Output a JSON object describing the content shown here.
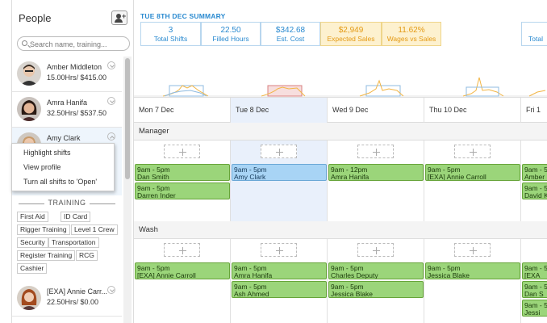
{
  "sidebar": {
    "title": "People",
    "search_placeholder": "Search name, training...",
    "people": [
      {
        "name": "Amber Middleton",
        "rate": "15.00Hrs/ $415.00"
      },
      {
        "name": "Amra Hanifa",
        "rate": "32.50Hrs/ $537.50"
      },
      {
        "name": "Amy Clark",
        "rate": ""
      },
      {
        "name": "[EXA] Annie Carr...",
        "rate": "22.50Hrs/ $0.00"
      }
    ],
    "context_menu": [
      "Highlight shifts",
      "View profile",
      "Turn all shifts to 'Open'"
    ],
    "training": {
      "heading": "TRAINING",
      "tags": [
        "First Aid",
        "ID Card",
        "Rigger Training",
        "Level 1 Crew",
        "Security",
        "Transportation",
        "Register Training",
        "RCG",
        "Cashier"
      ]
    }
  },
  "summary": {
    "title": "TUE 8TH DEC SUMMARY",
    "stats": [
      {
        "value": "3",
        "label": "Total Shifts"
      },
      {
        "value": "22.50",
        "label": "Filled Hours"
      },
      {
        "value": "$342.68",
        "label": "Est. Cost"
      },
      {
        "value": "$2,949",
        "label": "Expected Sales"
      },
      {
        "value": "11.62%",
        "label": "Wages vs Sales"
      }
    ],
    "next_label": "Total"
  },
  "days": [
    "Mon 7 Dec",
    "Tue 8 Dec",
    "Wed 9 Dec",
    "Thu 10 Dec",
    "Fri 1"
  ],
  "sections": [
    {
      "name": "Manager",
      "columns": [
        [
          {
            "time": "9am - 5pm",
            "name": "Dan Smith"
          },
          {
            "time": "9am - 5pm",
            "name": "Darren Inder"
          }
        ],
        [
          {
            "time": "9am - 5pm",
            "name": "Amy Clark"
          }
        ],
        [
          {
            "time": "9am - 12pm",
            "name": "Amra Hanifa"
          }
        ],
        [
          {
            "time": "9am - 5pm",
            "name": "[EXA] Annie Carroll"
          }
        ],
        [
          {
            "time": "9am - 5pm",
            "name": "Amber"
          },
          {
            "time": "9am - 5pm",
            "name": "David K"
          }
        ]
      ]
    },
    {
      "name": "Wash",
      "columns": [
        [
          {
            "time": "9am - 5pm",
            "name": "[EXA] Annie Carroll"
          }
        ],
        [
          {
            "time": "9am - 5pm",
            "name": "Amra Hanifa"
          },
          {
            "time": "9am - 5pm",
            "name": "Ash Ahmed"
          }
        ],
        [
          {
            "time": "9am - 5pm",
            "name": "Charles Deputy"
          },
          {
            "time": "9am - 5pm",
            "name": "Jessica Blake"
          }
        ],
        [
          {
            "time": "9am - 5pm",
            "name": "Jessica Blake"
          }
        ],
        [
          {
            "time": "9am - 5pm",
            "name": "[EXA"
          },
          {
            "time": "9am - 5pm",
            "name": "Dan S"
          },
          {
            "time": "9am - 5pm",
            "name": "Jessi"
          }
        ]
      ]
    }
  ],
  "colors": {
    "accent": "#2a8ad0",
    "highlight": "#e49a15",
    "shift_green": "#9bd57a",
    "shift_selected": "#a8d4f5"
  }
}
